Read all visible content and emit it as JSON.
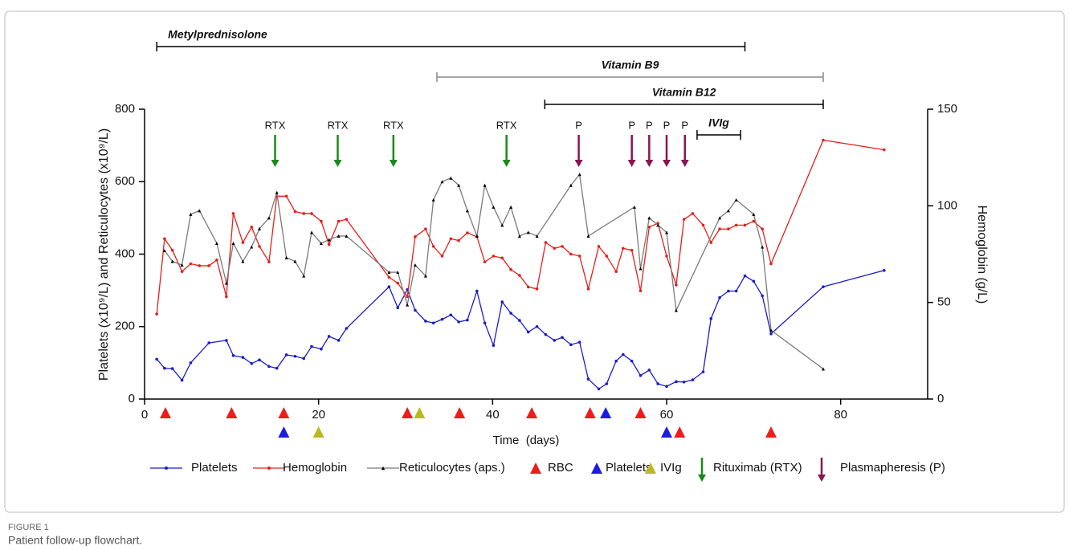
{
  "chart_data": {
    "type": "line",
    "caption_label": "FIGURE 1",
    "caption": "Patient follow-up flowchart.",
    "x_label": "Time  (days)",
    "y_label": "Platelets (x10⁹/L) and Reticulocytes (x10⁹/L)",
    "y2_label": "Hemoglobin (g/L)",
    "xlim": [
      0,
      90
    ],
    "xticks": [
      0,
      20,
      40,
      60,
      80
    ],
    "ylim": [
      0,
      800
    ],
    "yticks": [
      0,
      200,
      400,
      600,
      800
    ],
    "y2lim": [
      0,
      150
    ],
    "y2ticks": [
      0,
      50,
      100,
      150
    ],
    "series": [
      {
        "name": "Platelets",
        "color": "#1c1cc8",
        "marker": "dot",
        "x": [
          1.4,
          2.3,
          3.2,
          4.3,
          5.3,
          7.4,
          9.4,
          10.2,
          11.3,
          12.3,
          13.2,
          14.3,
          15.2,
          16.3,
          17.3,
          18.3,
          19.2,
          20.3,
          21.2,
          22.3,
          23.2,
          28.1,
          29.1,
          30.2,
          31.1,
          32.3,
          33.2,
          34.2,
          35.2,
          36.1,
          37.1,
          38.2,
          39.1,
          40.1,
          41.1,
          42.1,
          43.1,
          44.1,
          45.1,
          46.1,
          47.1,
          48,
          49,
          50,
          51,
          52.2,
          53.1,
          54.2,
          55,
          56,
          57,
          58,
          59,
          60,
          61.1,
          62,
          63,
          64.2,
          65.1,
          66.1,
          67.1,
          68,
          69,
          70,
          71,
          72,
          78,
          85
        ],
        "values": [
          110,
          85,
          84,
          52,
          100,
          155,
          162,
          120,
          115,
          98,
          108,
          90,
          85,
          122,
          118,
          112,
          145,
          138,
          173,
          162,
          195,
          310,
          252,
          302,
          245,
          215,
          210,
          220,
          232,
          213,
          218,
          298,
          210,
          148,
          268,
          237,
          217,
          185,
          200,
          178,
          162,
          170,
          150,
          157,
          55,
          28,
          42,
          105,
          123,
          105,
          65,
          80,
          42,
          35,
          48,
          47,
          53,
          75,
          222,
          280,
          298,
          298,
          340,
          325,
          285,
          180,
          310,
          355
        ]
      },
      {
        "name": "Hemoglobin",
        "color": "#e4201c",
        "marker": "dot",
        "axis": "y2",
        "x": [
          1.4,
          2.3,
          3.2,
          4.3,
          5.3,
          6.3,
          7.4,
          8.3,
          9.4,
          10.2,
          11.3,
          12.3,
          13.2,
          14.3,
          15.2,
          16.3,
          17.3,
          18.3,
          19.2,
          20.3,
          21.2,
          22.3,
          23.2,
          28.1,
          29.1,
          30.2,
          31.1,
          32.3,
          33.2,
          34.2,
          35.2,
          36.1,
          37.1,
          38.2,
          39.1,
          40.1,
          41.1,
          42.1,
          43.1,
          44.1,
          45.1,
          46.1,
          47.1,
          48,
          49,
          50,
          51,
          52.2,
          53.1,
          54.2,
          55,
          56,
          57,
          58,
          59,
          60,
          61.1,
          62,
          63,
          64.2,
          65.1,
          66.1,
          67.1,
          68,
          69,
          70,
          71,
          72,
          78,
          85
        ],
        "values": [
          44,
          83,
          77,
          66,
          70,
          69,
          69,
          72,
          53,
          96,
          81,
          89,
          79,
          71,
          105,
          105,
          97,
          96,
          96,
          92,
          80,
          92,
          93,
          63,
          60,
          53,
          84,
          88,
          79,
          74,
          83,
          82,
          86,
          84,
          71,
          74,
          73,
          67,
          64,
          58,
          57,
          81,
          78,
          79,
          75,
          74,
          57,
          79,
          74,
          66,
          78,
          77,
          56,
          89,
          91,
          74,
          59,
          93,
          96,
          90,
          81,
          88,
          88,
          90,
          90,
          92,
          88,
          70,
          134,
          129
        ]
      },
      {
        "name": "Reticulocytes (aps.)",
        "color": "#7a7a7a",
        "marker": "triangle",
        "x": [
          2.3,
          3.2,
          4.3,
          5.3,
          6.3,
          8.3,
          9.4,
          10.2,
          11.3,
          12.3,
          13.2,
          14.3,
          15.2,
          16.3,
          17.3,
          18.3,
          19.2,
          20.3,
          21.2,
          22.3,
          23.2,
          28.1,
          29.1,
          30.2,
          31.1,
          32.3,
          33.2,
          34.2,
          35.2,
          36.1,
          37.1,
          38.2,
          39.1,
          40.1,
          41.1,
          42.1,
          43.1,
          44.1,
          45.1,
          49,
          50,
          51,
          56.3,
          57,
          58,
          59,
          60,
          61.1,
          66.1,
          67.1,
          68,
          70,
          71,
          72,
          78
        ],
        "values": [
          410,
          380,
          370,
          510,
          520,
          430,
          320,
          430,
          380,
          420,
          470,
          500,
          570,
          390,
          380,
          340,
          460,
          430,
          440,
          450,
          450,
          350,
          350,
          260,
          370,
          340,
          550,
          600,
          610,
          590,
          520,
          450,
          590,
          530,
          480,
          530,
          450,
          460,
          450,
          590,
          620,
          450,
          530,
          360,
          500,
          480,
          460,
          245,
          500,
          520,
          550,
          510,
          420,
          190,
          83
        ]
      }
    ],
    "transfusions": [
      {
        "name": "RBC",
        "color": "#ee1c1c",
        "days": [
          2.4,
          10,
          16,
          30.2,
          36.2,
          44.5,
          51.2,
          57,
          61.5,
          72
        ]
      },
      {
        "name": "Platelets",
        "color": "#1c1ce0",
        "days": [
          16,
          53,
          60
        ]
      },
      {
        "name": "IVIg",
        "color": "#bdb81e",
        "days": [
          20,
          31.6
        ]
      }
    ],
    "arrows": [
      {
        "name": "Rituximab (RTX)",
        "label": "RTX",
        "color": "#1a8a1a",
        "days": [
          15,
          22.2,
          28.6,
          41.6
        ]
      },
      {
        "name": "Plasmapheresis (P)",
        "label": "P",
        "color": "#8b1552",
        "days": [
          49.9,
          56,
          58,
          60,
          62.1
        ]
      }
    ],
    "treatments": [
      {
        "name": "Metylprednisolone",
        "color": "#000000",
        "start": 1.4,
        "end": 69
      },
      {
        "name": "Vitamin B9",
        "color": "#888888",
        "start": 33.6,
        "end": 78
      },
      {
        "name": "Vitamin B12",
        "color": "#000000",
        "start": 46,
        "end": 78
      },
      {
        "name": "IVIg",
        "color": "#000000",
        "start": 63.5,
        "end": 68.5
      }
    ]
  }
}
